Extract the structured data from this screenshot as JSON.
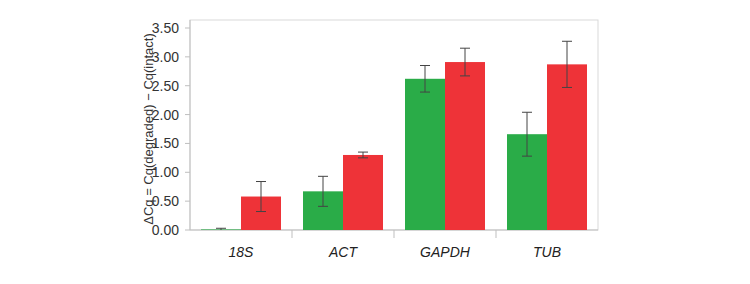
{
  "chart_data": {
    "type": "bar",
    "y_label": "ΔCq = Cq(degraded) − Cq(intact)",
    "categories": [
      "18S",
      "ACT",
      "GAPDH",
      "TUB"
    ],
    "series": [
      {
        "color": "#2aac48",
        "values": [
          0.01,
          0.67,
          2.62,
          1.66
        ],
        "errors": [
          0.02,
          0.26,
          0.23,
          0.38
        ]
      },
      {
        "color": "#ee3338",
        "values": [
          0.58,
          1.3,
          2.91,
          2.87
        ],
        "errors": [
          0.26,
          0.05,
          0.24,
          0.4
        ]
      }
    ],
    "ylim": [
      0,
      3.5
    ],
    "yticks": [
      {
        "value": 0,
        "label": "0.00"
      },
      {
        "value": 0.5,
        "label": "0.50"
      },
      {
        "value": 1,
        "label": "1.00"
      },
      {
        "value": 1.5,
        "label": "1.50"
      },
      {
        "value": 2,
        "label": "2.00"
      },
      {
        "value": 2.5,
        "label": "2.50"
      },
      {
        "value": 3,
        "label": "3.00"
      },
      {
        "value": 3.5,
        "label": "3.50"
      }
    ],
    "grid": false
  }
}
